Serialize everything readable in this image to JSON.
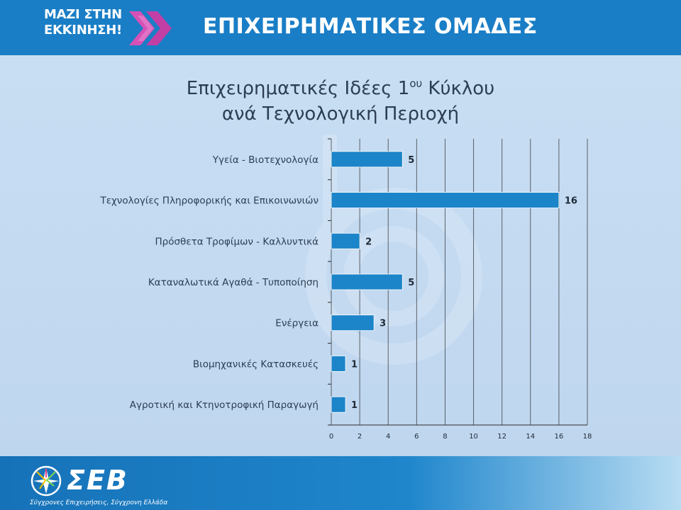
{
  "header": {
    "logo_line1": "ΜΑΖΙ ΣΤΗΝ",
    "logo_line2": "ΕΚΚΙΝΗΣΗ!",
    "title": "ΕΠΙΧΕΙΡΗΜΑΤΙΚΕΣ ΟΜΑΔΕΣ",
    "accent_color": "#1a7ec6",
    "logo_chevron_color": "#c23fa6"
  },
  "footer": {
    "logo_text": "ΣΕΒ",
    "tagline": "Σύγχρονες Επιχειρήσεις, Σύγχρονη Ελλάδα",
    "logo_icon": "seb-star-icon"
  },
  "chart_data": {
    "type": "bar",
    "orientation": "horizontal",
    "title_line1_main": "Επιχειρηματικές Ιδέες 1",
    "title_line1_sup": "ου",
    "title_line1_end": " Κύκλου",
    "title_line2": "ανά Τεχνολογική Περιοχή",
    "categories": [
      "Υγεία - Βιοτεχνολογία",
      "Τεχνολογίες Πληροφορικής και Επικοινωνιών",
      "Πρόσθετα Τροφίμων - Καλλυντικά",
      "Καταναλωτικά Αγαθά - Τυποποίηση",
      "Ενέργεια",
      "Βιομηχανικές Κατασκευές",
      "Αγροτική και Κτηνοτροφική Παραγωγή"
    ],
    "values": [
      5,
      16,
      2,
      5,
      3,
      1,
      1
    ],
    "data_labels": [
      "5",
      "16",
      "2",
      "5",
      "3",
      "1",
      "1"
    ],
    "xlim": [
      0,
      18
    ],
    "x_ticks": [
      0,
      2,
      4,
      6,
      8,
      10,
      12,
      14,
      16,
      18
    ],
    "x_tick_labels": [
      "0",
      "2",
      "4",
      "6",
      "8",
      "10",
      "12",
      "14",
      "16",
      "18"
    ],
    "grid": "vertical",
    "legend": "none",
    "bar_color": "#1c84c8",
    "grid_color": "#2b2b2b"
  }
}
